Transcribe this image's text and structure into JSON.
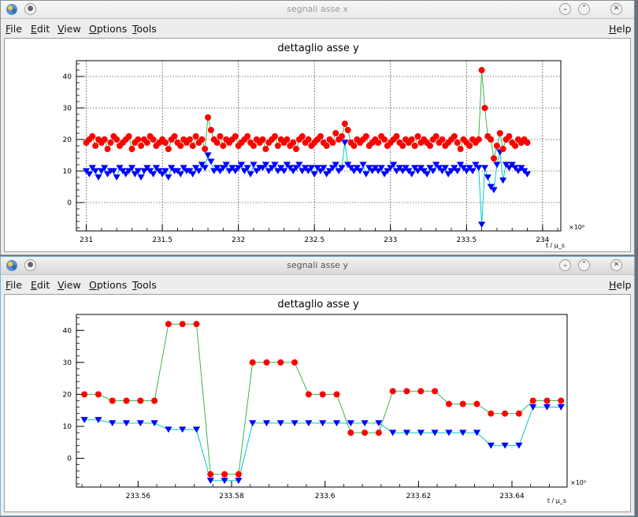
{
  "windows": [
    {
      "title": "segnali asse x",
      "menu": {
        "file": "File",
        "edit": "Edit",
        "view": "View",
        "options": "Options",
        "tools": "Tools",
        "help": "Help"
      }
    },
    {
      "title": "segnali asse y",
      "menu": {
        "file": "File",
        "edit": "Edit",
        "view": "View",
        "options": "Options",
        "tools": "Tools",
        "help": "Help"
      }
    }
  ],
  "colors": {
    "red_marker": "#ff0000",
    "blue_marker": "#0000ff",
    "green_line": "#3cb44b",
    "cyan_line": "#00c8c8"
  },
  "chart_data": [
    {
      "type": "scatter",
      "title": "dettaglio asse y",
      "xlabel": "t / μ_s",
      "x_exponent": "×10⁶",
      "xlim": [
        230.935,
        234.12
      ],
      "ylim": [
        -9,
        45
      ],
      "grid": true,
      "x_ticks": [
        "231",
        "231.5",
        "232",
        "232.5",
        "233",
        "233.5",
        "234"
      ],
      "y_ticks": [
        "0",
        "10",
        "20",
        "30",
        "40"
      ],
      "series": [
        {
          "x": [
            231.0,
            231.02,
            231.04,
            231.06,
            231.08,
            231.1,
            231.12,
            231.14,
            231.16,
            231.18,
            231.2,
            231.22,
            231.24,
            231.26,
            231.28,
            231.3,
            231.32,
            231.34,
            231.36,
            231.38,
            231.4,
            231.42,
            231.44,
            231.46,
            231.48,
            231.5,
            231.52,
            231.54,
            231.56,
            231.58,
            231.6,
            231.62,
            231.64,
            231.66,
            231.68,
            231.7,
            231.72,
            231.74,
            231.76,
            231.78,
            231.8,
            231.82,
            231.84,
            231.86,
            231.88,
            231.9,
            231.92,
            231.94,
            231.96,
            231.98,
            232.0,
            232.02,
            232.04,
            232.06,
            232.08,
            232.1,
            232.12,
            232.14,
            232.16,
            232.18,
            232.2,
            232.22,
            232.24,
            232.26,
            232.28,
            232.3,
            232.32,
            232.34,
            232.36,
            232.38,
            232.4,
            232.42,
            232.44,
            232.46,
            232.48,
            232.5,
            232.52,
            232.54,
            232.56,
            232.58,
            232.6,
            232.62,
            232.64,
            232.66,
            232.68,
            232.7,
            232.72,
            232.74,
            232.76,
            232.78,
            232.8,
            232.82,
            232.84,
            232.86,
            232.88,
            232.9,
            232.92,
            232.94,
            232.96,
            232.98,
            233.0,
            233.02,
            233.04,
            233.06,
            233.08,
            233.1,
            233.12,
            233.14,
            233.16,
            233.18,
            233.2,
            233.22,
            233.24,
            233.26,
            233.28,
            233.3,
            233.32,
            233.34,
            233.36,
            233.38,
            233.4,
            233.42,
            233.44,
            233.46,
            233.48,
            233.5,
            233.52,
            233.54,
            233.56,
            233.58,
            233.6,
            233.62,
            233.64,
            233.66,
            233.68,
            233.7,
            233.72,
            233.74,
            233.76,
            233.78,
            233.8,
            233.82,
            233.84,
            233.86,
            233.88,
            233.9
          ],
          "y": [
            19,
            20,
            21,
            18,
            20,
            19,
            20,
            17,
            19,
            21,
            20,
            18,
            19,
            20,
            21,
            17,
            19,
            20,
            18,
            20,
            19,
            21,
            20,
            18,
            19,
            20,
            19,
            17,
            20,
            21,
            19,
            18,
            20,
            19,
            20,
            18,
            21,
            19,
            20,
            17,
            27,
            23,
            20,
            19,
            21,
            18,
            20,
            19,
            20,
            21,
            18,
            19,
            20,
            21,
            19,
            18,
            20,
            19,
            20,
            17,
            19,
            20,
            21,
            18,
            20,
            19,
            20,
            18,
            19,
            17,
            20,
            21,
            19,
            20,
            18,
            19,
            20,
            21,
            19,
            18,
            20,
            19,
            22,
            20,
            21,
            25,
            23,
            19,
            18,
            20,
            19,
            20,
            21,
            18,
            19,
            20,
            19,
            21,
            20,
            18,
            19,
            20,
            21,
            19,
            18,
            20,
            19,
            20,
            18,
            21,
            19,
            20,
            19,
            18,
            20,
            21,
            19,
            20,
            18,
            19,
            20,
            21,
            19,
            17,
            20,
            19,
            18,
            20,
            19,
            20,
            42,
            30,
            21,
            20,
            14,
            18,
            22,
            17,
            20,
            21,
            19,
            18,
            20,
            19,
            20,
            19
          ]
        },
        {
          "x": [
            231.0,
            231.02,
            231.04,
            231.06,
            231.08,
            231.1,
            231.12,
            231.14,
            231.16,
            231.18,
            231.2,
            231.22,
            231.24,
            231.26,
            231.28,
            231.3,
            231.32,
            231.34,
            231.36,
            231.38,
            231.4,
            231.42,
            231.44,
            231.46,
            231.48,
            231.5,
            231.52,
            231.54,
            231.56,
            231.58,
            231.6,
            231.62,
            231.64,
            231.66,
            231.68,
            231.7,
            231.72,
            231.74,
            231.76,
            231.78,
            231.8,
            231.82,
            231.84,
            231.86,
            231.88,
            231.9,
            231.92,
            231.94,
            231.96,
            231.98,
            232.0,
            232.02,
            232.04,
            232.06,
            232.08,
            232.1,
            232.12,
            232.14,
            232.16,
            232.18,
            232.2,
            232.22,
            232.24,
            232.26,
            232.28,
            232.3,
            232.32,
            232.34,
            232.36,
            232.38,
            232.4,
            232.42,
            232.44,
            232.46,
            232.48,
            232.5,
            232.52,
            232.54,
            232.56,
            232.58,
            232.6,
            232.62,
            232.64,
            232.66,
            232.68,
            232.7,
            232.72,
            232.74,
            232.76,
            232.78,
            232.8,
            232.82,
            232.84,
            232.86,
            232.88,
            232.9,
            232.92,
            232.94,
            232.96,
            232.98,
            233.0,
            233.02,
            233.04,
            233.06,
            233.08,
            233.1,
            233.12,
            233.14,
            233.16,
            233.18,
            233.2,
            233.22,
            233.24,
            233.26,
            233.28,
            233.3,
            233.32,
            233.34,
            233.36,
            233.38,
            233.4,
            233.42,
            233.44,
            233.46,
            233.48,
            233.5,
            233.52,
            233.54,
            233.56,
            233.58,
            233.6,
            233.62,
            233.64,
            233.66,
            233.68,
            233.7,
            233.72,
            233.74,
            233.76,
            233.78,
            233.8,
            233.82,
            233.84,
            233.86,
            233.88,
            233.9
          ],
          "y": [
            10,
            9,
            11,
            10,
            8,
            10,
            11,
            9,
            10,
            10,
            8,
            11,
            10,
            9,
            10,
            11,
            9,
            10,
            8,
            10,
            11,
            10,
            9,
            11,
            10,
            9,
            10,
            8,
            11,
            10,
            10,
            9,
            11,
            10,
            10,
            9,
            11,
            10,
            12,
            11,
            15,
            13,
            10,
            11,
            10,
            11,
            12,
            10,
            11,
            10,
            11,
            12,
            10,
            11,
            9,
            12,
            10,
            11,
            11,
            12,
            10,
            11,
            12,
            10,
            11,
            10,
            12,
            11,
            10,
            11,
            12,
            10,
            11,
            10,
            11,
            9,
            11,
            10,
            11,
            9,
            10,
            11,
            12,
            10,
            11,
            19,
            12,
            11,
            10,
            11,
            10,
            12,
            9,
            11,
            10,
            11,
            10,
            11,
            9,
            10,
            11,
            12,
            10,
            11,
            10,
            11,
            10,
            9,
            11,
            10,
            11,
            10,
            9,
            11,
            10,
            12,
            11,
            10,
            11,
            9,
            10,
            11,
            10,
            12,
            11,
            10,
            11,
            10,
            12,
            11,
            -7,
            11,
            8,
            5,
            4,
            12,
            16,
            7,
            12,
            11,
            12,
            11,
            10,
            11,
            10,
            9
          ]
        }
      ]
    },
    {
      "type": "line",
      "title": "dettaglio asse y",
      "xlabel": "t / μ_s",
      "x_exponent": "×10⁶",
      "xlim": [
        233.5468,
        233.6518
      ],
      "ylim": [
        -9,
        45
      ],
      "grid": false,
      "x_ticks": [
        "233.56",
        "233.58",
        "233.6",
        "233.62",
        "233.64"
      ],
      "y_ticks": [
        "0",
        "10",
        "20",
        "30",
        "40"
      ],
      "series": [
        {
          "x": [
            233.5485,
            233.5515,
            233.5545,
            233.5575,
            233.5605,
            233.5635,
            233.5665,
            233.5695,
            233.5725,
            233.5755,
            233.5785,
            233.5815,
            233.5845,
            233.5875,
            233.5905,
            233.5935,
            233.5965,
            233.5995,
            233.6025,
            233.6055,
            233.6085,
            233.6115,
            233.6145,
            233.6175,
            233.6205,
            233.6235,
            233.6265,
            233.6295,
            233.6325,
            233.6355,
            233.6385,
            233.6415,
            233.6445,
            233.6475,
            233.6505
          ],
          "y": [
            20,
            20,
            18,
            18,
            18,
            18,
            42,
            42,
            42,
            -5,
            -5,
            -5,
            30,
            30,
            30,
            30,
            20,
            20,
            20,
            8,
            8,
            8,
            21,
            21,
            21,
            21,
            17,
            17,
            17,
            14,
            14,
            14,
            18,
            18,
            18
          ]
        },
        {
          "x": [
            233.5485,
            233.5515,
            233.5545,
            233.5575,
            233.5605,
            233.5635,
            233.5665,
            233.5695,
            233.5725,
            233.5755,
            233.5785,
            233.5815,
            233.5845,
            233.5875,
            233.5905,
            233.5935,
            233.5965,
            233.5995,
            233.6025,
            233.6055,
            233.6085,
            233.6115,
            233.6145,
            233.6175,
            233.6205,
            233.6235,
            233.6265,
            233.6295,
            233.6325,
            233.6355,
            233.6385,
            233.6415,
            233.6445,
            233.6475,
            233.6505
          ],
          "y": [
            12,
            12,
            11,
            11,
            11,
            11,
            9,
            9,
            9,
            -7,
            -7,
            -7,
            11,
            11,
            11,
            11,
            11,
            11,
            11,
            11,
            11,
            11,
            8,
            8,
            8,
            8,
            8,
            8,
            8,
            4,
            4,
            4,
            16,
            16,
            16
          ]
        }
      ]
    }
  ]
}
